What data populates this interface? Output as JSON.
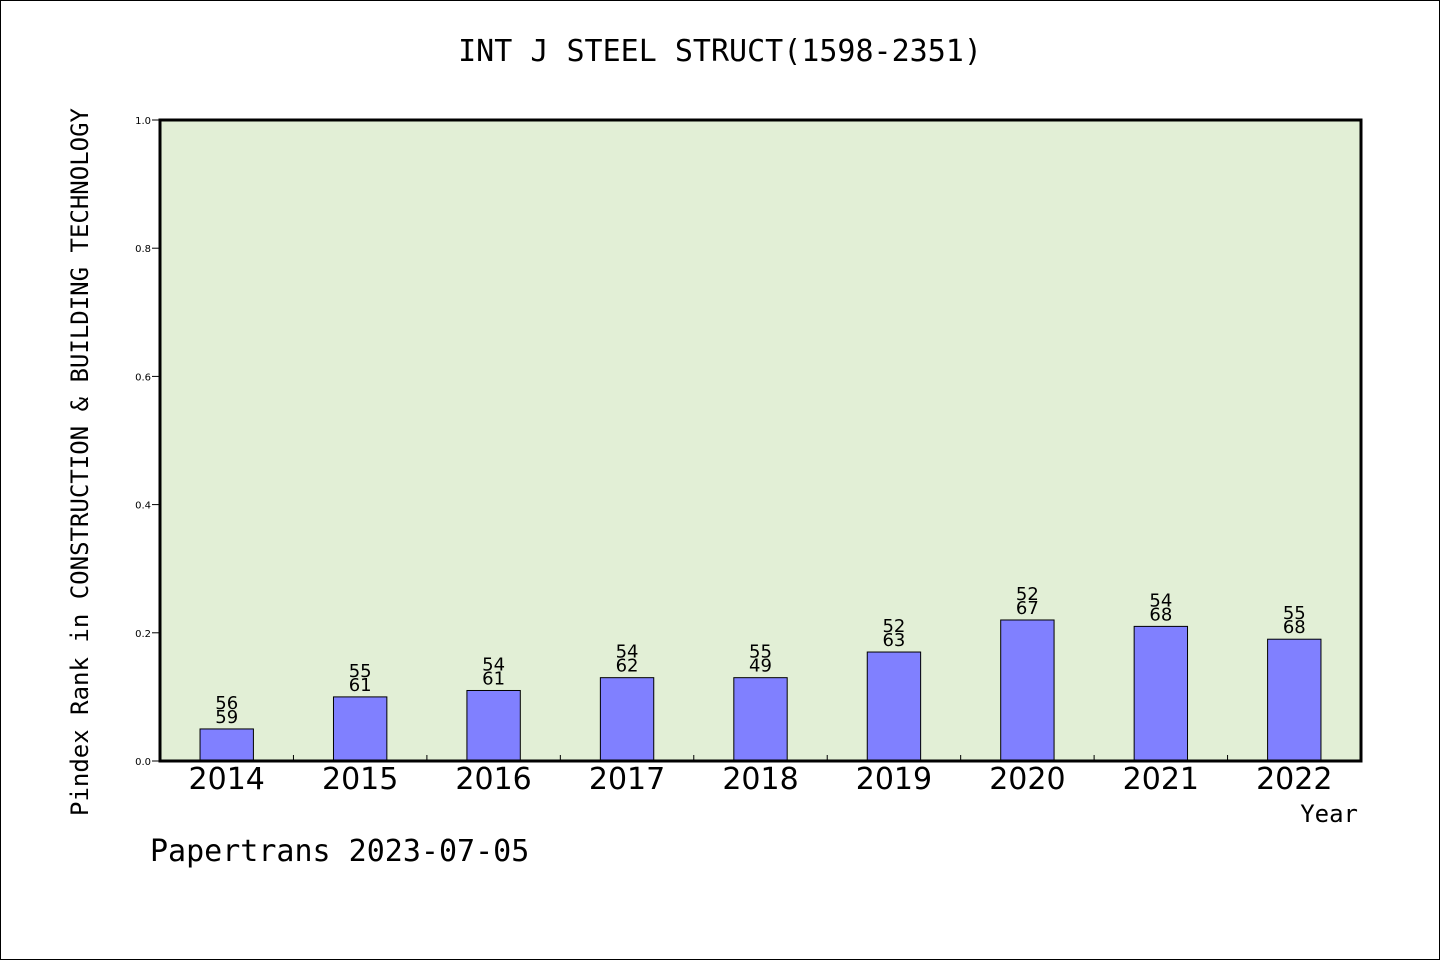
{
  "chart_data": {
    "type": "bar",
    "title": "INT J STEEL STRUCT(1598-2351)",
    "ylabel": "Pindex Rank in CONSTRUCTION & BUILDING TECHNOLOGY",
    "xlabel": "Year",
    "ylim": [
      0.0,
      1.0
    ],
    "yticks": [
      "0.0",
      "0.2",
      "0.4",
      "0.6",
      "0.8",
      "1.0"
    ],
    "categories": [
      "2014",
      "2015",
      "2016",
      "2017",
      "2018",
      "2019",
      "2020",
      "2021",
      "2022"
    ],
    "values": [
      0.05,
      0.1,
      0.11,
      0.13,
      0.13,
      0.17,
      0.22,
      0.21,
      0.19
    ],
    "label_top": [
      "56",
      "55",
      "54",
      "54",
      "55",
      "52",
      "52",
      "54",
      "55"
    ],
    "label_bottom": [
      "59",
      "61",
      "61",
      "62",
      "49",
      "63",
      "67",
      "68",
      "68"
    ],
    "grid": false,
    "plot_background": "#e2efd6",
    "bar_color": "#8080ff"
  },
  "footer": "Papertrans 2023-07-05"
}
